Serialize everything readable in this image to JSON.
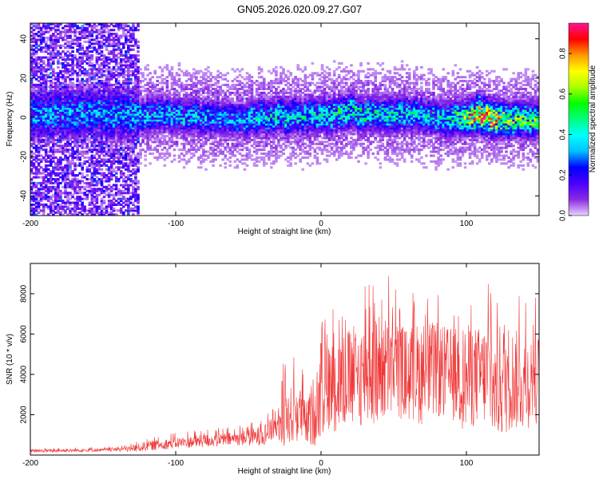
{
  "title": "GN05.2026.020.09.27.G07",
  "colors": {
    "snr_line": "#f03535",
    "axis": "#000000",
    "background": "#ffffff"
  },
  "chart_data": [
    {
      "type": "heatmap",
      "xlabel": "Height of straight line (km)",
      "ylabel": "Frequency (Hz)",
      "xlim": [
        -200,
        150
      ],
      "ylim": [
        -50,
        48
      ],
      "xticks": [
        -200,
        -100,
        0,
        100
      ],
      "yticks": [
        -40,
        -20,
        0,
        20,
        40
      ],
      "colorbar": {
        "label": "Normalized spectral amplitude",
        "range": [
          0,
          0.95
        ],
        "ticks": [
          "0.0",
          "0.2",
          "0.4",
          "0.6",
          "0.8"
        ],
        "tick_values": [
          0,
          0.2,
          0.4,
          0.6,
          0.8
        ],
        "colors": [
          "#e9d4ff",
          "#8a2be2",
          "#4b00ff",
          "#0000ff",
          "#00bfff",
          "#00ffff",
          "#00ff80",
          "#00ff00",
          "#aaff00",
          "#ffff00",
          "#ff9900",
          "#ff0000",
          "#ff1493"
        ]
      },
      "ridge": {
        "x": [
          -160,
          -100,
          -60,
          -30,
          0,
          20,
          40,
          60,
          80,
          100,
          110,
          120,
          135,
          150
        ],
        "center_hz": [
          2,
          1,
          -1,
          1,
          0,
          3,
          1,
          2,
          0,
          0,
          2,
          -2,
          -1,
          0
        ],
        "peak_amplitude": [
          0.35,
          0.4,
          0.35,
          0.45,
          0.45,
          0.5,
          0.45,
          0.45,
          0.4,
          0.6,
          0.95,
          0.8,
          0.6,
          0.6
        ]
      },
      "noise_region": {
        "x_start": -200,
        "x_end": -125,
        "amplitude": 0.2
      }
    },
    {
      "type": "line",
      "xlabel": "Height of straight line (km)",
      "ylabel": "SNR (10 * v/v)",
      "xlim": [
        -200,
        150
      ],
      "ylim": [
        0,
        9500
      ],
      "xticks": [
        -200,
        -100,
        0,
        100
      ],
      "yticks": [
        2000,
        4000,
        6000,
        8000
      ],
      "series": [
        {
          "name": "SNR",
          "envelope": {
            "x": [
              -200,
              -150,
              -130,
              -120,
              -100,
              -80,
              -60,
              -45,
              -40,
              -35,
              -28,
              -25,
              -22,
              -20,
              -15,
              -10,
              -5,
              0,
              10,
              20,
              30,
              40,
              50,
              60,
              70,
              80,
              90,
              100,
              110,
              115,
              120,
              125,
              130,
              140,
              150
            ],
            "mean": [
              200,
              250,
              300,
              450,
              600,
              700,
              800,
              900,
              1000,
              1200,
              1500,
              2500,
              1800,
              2000,
              2200,
              1500,
              2200,
              3000,
              3500,
              3800,
              4000,
              4200,
              4300,
              4000,
              4100,
              4200,
              4000,
              3800,
              4000,
              3900,
              3200,
              3900,
              3800,
              3600,
              3800
            ],
            "max": [
              350,
              400,
              600,
              900,
              1100,
              1300,
              1400,
              1700,
              2000,
              2200,
              3000,
              6800,
              4000,
              5000,
              4800,
              3500,
              5500,
              7000,
              7800,
              8500,
              8700,
              9400,
              8800,
              8200,
              8900,
              8500,
              8200,
              8700,
              8300,
              9000,
              7800,
              9700,
              8500,
              8000,
              7800
            ]
          }
        }
      ]
    }
  ]
}
